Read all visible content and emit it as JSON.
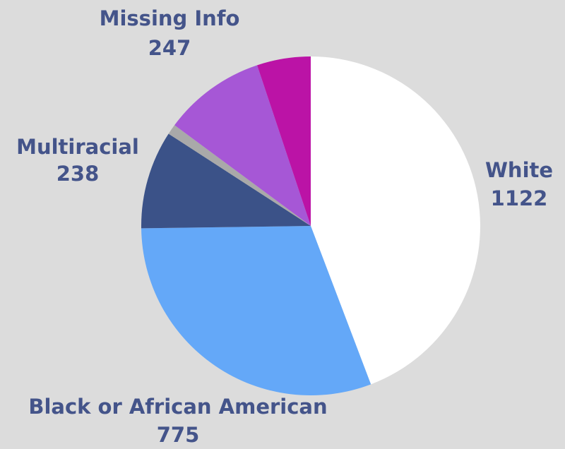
{
  "chart_data": {
    "type": "pie",
    "categories": [
      "White",
      "Black or African American",
      "Multiracial",
      null,
      "Missing Info",
      null
    ],
    "values": [
      1122,
      775,
      238,
      25,
      247,
      130
    ],
    "colors": [
      "#ffffff",
      "#64a8f8",
      "#3b5288",
      "#a9a9a9",
      "#a657d6",
      "#bb13a6"
    ]
  }
}
